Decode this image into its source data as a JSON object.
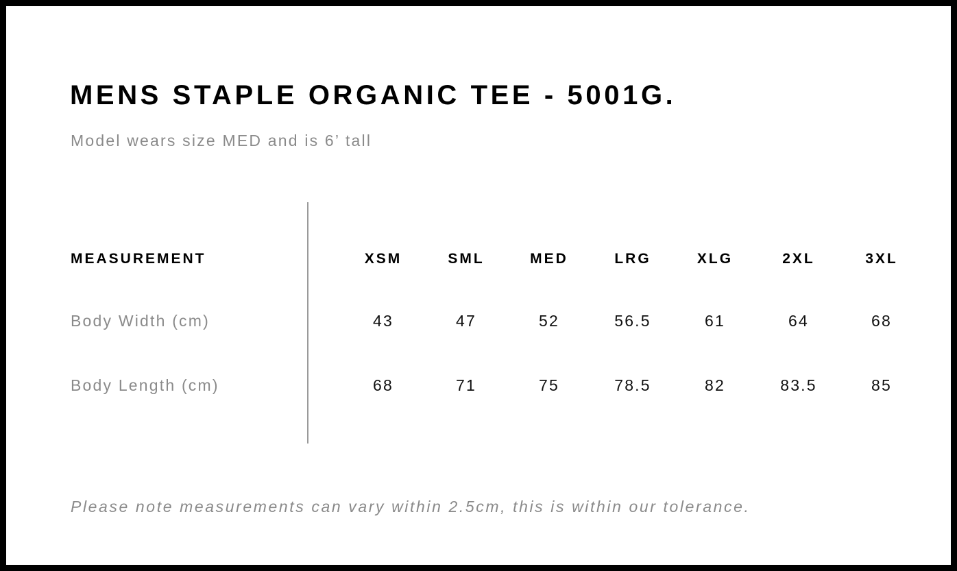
{
  "title": "MENS STAPLE ORGANIC TEE - 5001G.",
  "subtitle": "Model wears size MED and is 6’ tall",
  "table": {
    "header_label": "MEASUREMENT",
    "sizes": [
      "XSM",
      "SML",
      "MED",
      "LRG",
      "XLG",
      "2XL",
      "3XL"
    ],
    "rows": [
      {
        "label": "Body Width (cm)",
        "values": [
          "43",
          "47",
          "52",
          "56.5",
          "61",
          "64",
          "68"
        ]
      },
      {
        "label": "Body Length (cm)",
        "values": [
          "68",
          "71",
          "75",
          "78.5",
          "82",
          "83.5",
          "85"
        ]
      }
    ]
  },
  "note": "Please note measurements can vary within 2.5cm, this is within our tolerance."
}
